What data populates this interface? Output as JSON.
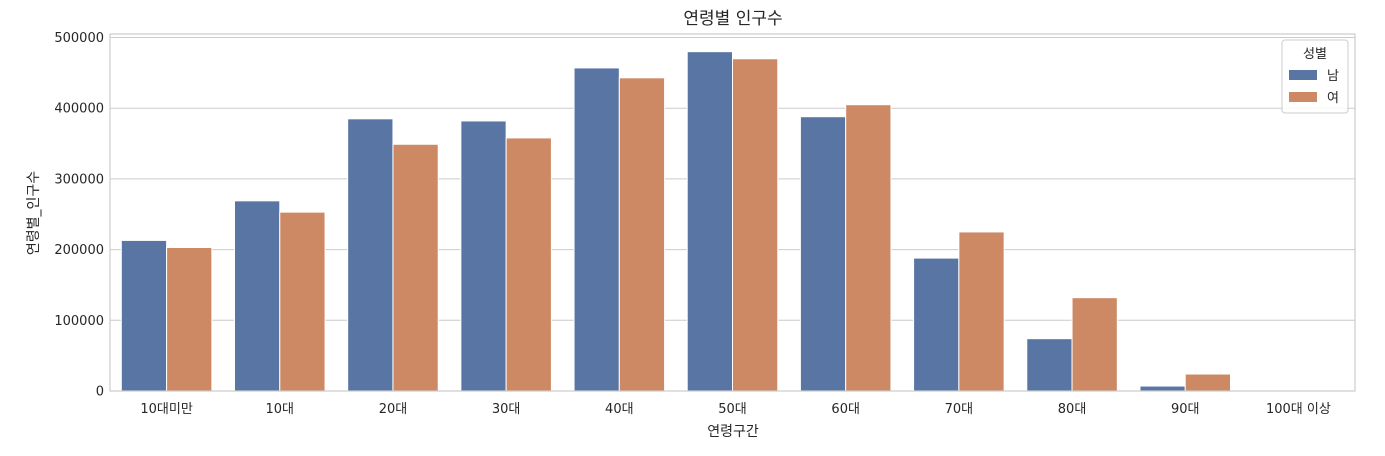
{
  "chart_data": {
    "type": "bar",
    "title": "연령별 인구수",
    "xlabel": "연령구간",
    "ylabel": "연령별_인구수",
    "categories": [
      "10대미만",
      "10대",
      "20대",
      "30대",
      "40대",
      "50대",
      "60대",
      "70대",
      "80대",
      "90대",
      "100대 이상"
    ],
    "series": [
      {
        "name": "남",
        "color": "#5875a4",
        "values": [
          213000,
          269000,
          385000,
          382000,
          457000,
          480000,
          388000,
          188000,
          74000,
          7000,
          300
        ]
      },
      {
        "name": "여",
        "color": "#cc8963",
        "values": [
          203000,
          253000,
          349000,
          358000,
          443000,
          470000,
          405000,
          225000,
          132000,
          24000,
          1200
        ]
      }
    ],
    "ylim": [
      0,
      505000
    ],
    "yticks": [
      "0",
      "100000",
      "200000",
      "300000",
      "400000",
      "500000"
    ],
    "grid": true,
    "legend": {
      "title": "성별",
      "placement": "top-right"
    }
  }
}
